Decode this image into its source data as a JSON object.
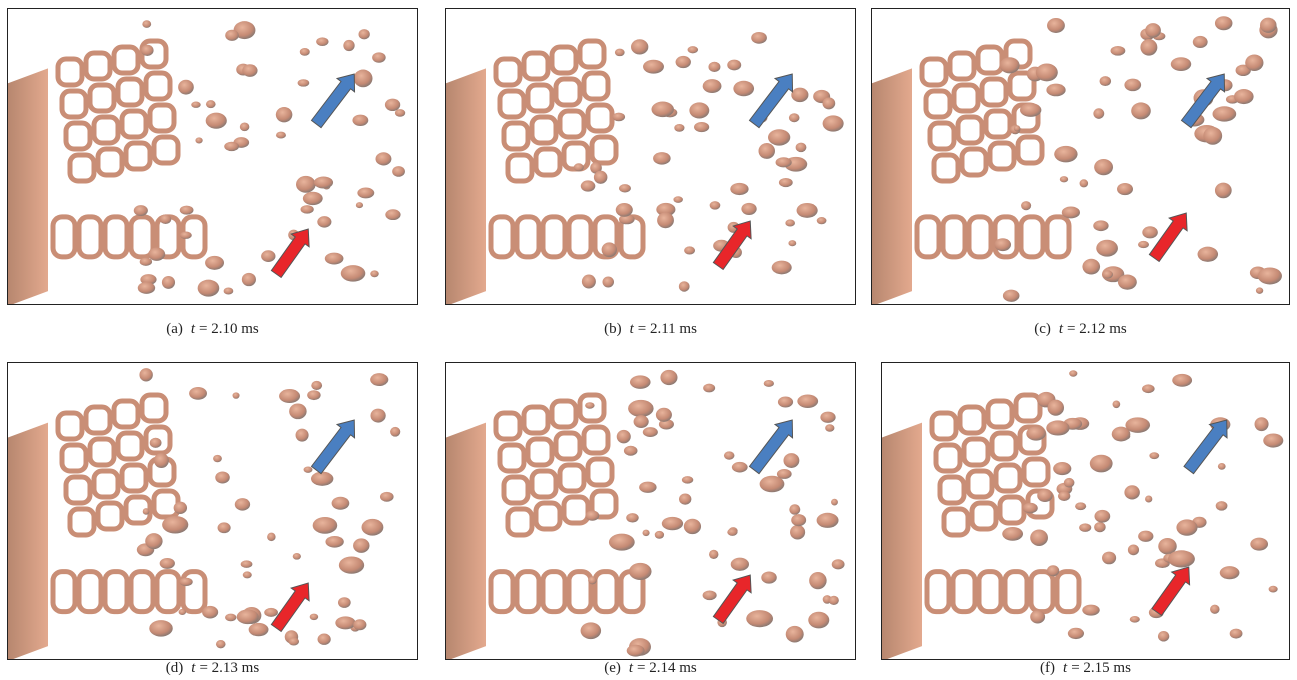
{
  "panels": [
    {
      "label": "(a)",
      "variable": "t",
      "value": "= 2.10 ms"
    },
    {
      "label": "(b)",
      "variable": "t",
      "value": "= 2.11 ms"
    },
    {
      "label": "(c)",
      "variable": "t",
      "value": "= 2.12 ms"
    },
    {
      "label": "(d)",
      "variable": "t",
      "value": "= 2.13 ms"
    },
    {
      "label": "(e)",
      "variable": "t",
      "value": "= 2.14 ms"
    },
    {
      "label": "(f)",
      "variable": "t",
      "value": "= 2.15 ms"
    }
  ]
}
